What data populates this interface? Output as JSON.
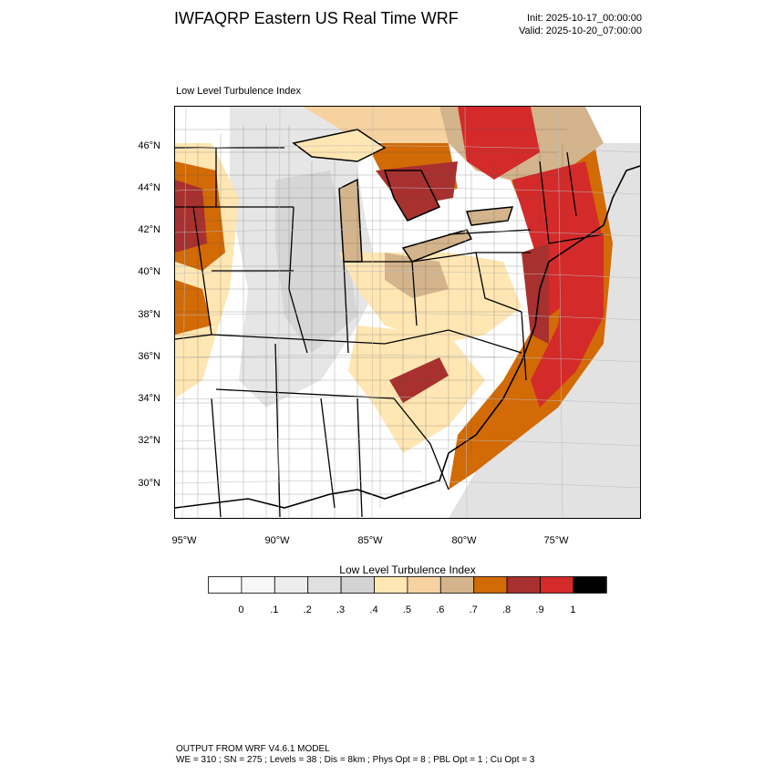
{
  "header": {
    "title": "IWFAQRP Eastern US Real Time WRF",
    "init": "Init: 2025-10-17_00:00:00",
    "valid": "Valid: 2025-10-20_07:00:00"
  },
  "plot": {
    "title": "Low Level Turbulence Index"
  },
  "axes": {
    "lat_labels": [
      "46°N",
      "44°N",
      "42°N",
      "40°N",
      "38°N",
      "36°N",
      "34°N",
      "32°N",
      "30°N"
    ],
    "lon_labels": [
      "95°W",
      "90°W",
      "85°W",
      "80°W",
      "75°W"
    ]
  },
  "colorbar": {
    "title": "Low Level Turbulence Index",
    "labels": [
      "0",
      ".1",
      ".2",
      ".3",
      ".4",
      ".5",
      ".6",
      ".7",
      ".8",
      ".9",
      "1"
    ],
    "colors": [
      "#ffffff",
      "#f7f7f7",
      "#ededed",
      "#e0e0e0",
      "#d3d3d3",
      "#ffe6b3",
      "#f5d2a0",
      "#d4b48c",
      "#d26a06",
      "#a8302e",
      "#d42a2a",
      "#000000"
    ]
  },
  "footer": {
    "line1": "OUTPUT FROM WRF V4.6.1 MODEL",
    "line2": "WE = 310 ; SN = 275 ; Levels = 38 ; Dis = 8km ; Phys Opt = 8 ; PBL Opt = 1 ; Cu Opt = 3"
  }
}
